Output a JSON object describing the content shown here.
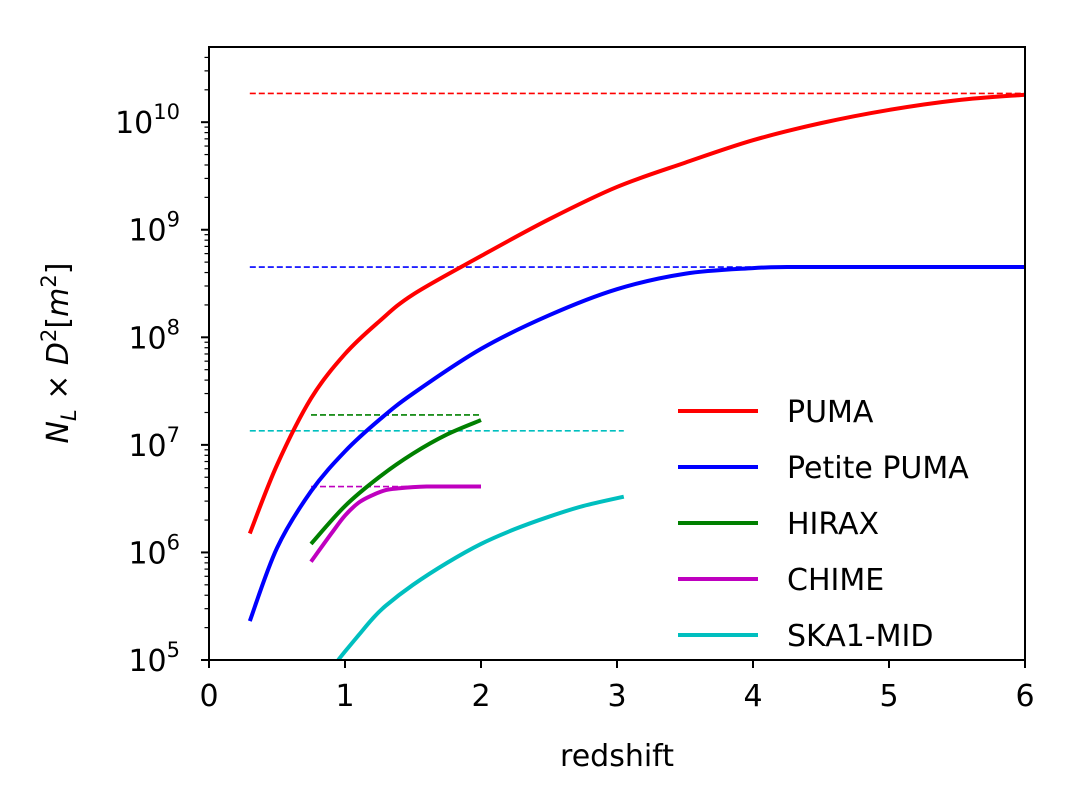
{
  "chart_data": {
    "type": "line",
    "xlabel": "redshift",
    "ylabel": "N_L × D^2 [m^2]",
    "xlim": [
      0,
      6
    ],
    "ylim": [
      100000,
      50000000000
    ],
    "yscale": "log",
    "grid": false,
    "legend_position": "bottom-right",
    "x_ticks": [
      {
        "value": 0,
        "label": "0"
      },
      {
        "value": 1,
        "label": "1"
      },
      {
        "value": 2,
        "label": "2"
      },
      {
        "value": 3,
        "label": "3"
      },
      {
        "value": 4,
        "label": "4"
      },
      {
        "value": 5,
        "label": "5"
      },
      {
        "value": 6,
        "label": "6"
      }
    ],
    "y_ticks": [
      {
        "value": 100000,
        "base": "10",
        "exp": "5"
      },
      {
        "value": 1000000,
        "base": "10",
        "exp": "6"
      },
      {
        "value": 10000000,
        "base": "10",
        "exp": "7"
      },
      {
        "value": 100000000,
        "base": "10",
        "exp": "8"
      },
      {
        "value": 1000000000,
        "base": "10",
        "exp": "9"
      },
      {
        "value": 10000000000,
        "base": "10",
        "exp": "10"
      }
    ],
    "series": [
      {
        "name": "PUMA",
        "color": "#ff0000",
        "x": [
          0.3,
          0.5,
          0.75,
          1.0,
          1.25,
          1.5,
          2.0,
          2.5,
          3.0,
          3.5,
          4.0,
          4.5,
          5.0,
          5.5,
          6.0
        ],
        "y": [
          1500000,
          6500000,
          27000000,
          70000000,
          140000000,
          250000000,
          570000000,
          1250000000,
          2500000000,
          4200000000,
          6800000000,
          9800000000,
          13000000000,
          16000000000,
          18000000000
        ],
        "limit": {
          "x": [
            0.3,
            6.0
          ],
          "y": 18500000000
        }
      },
      {
        "name": "Petite PUMA",
        "color": "#0000ff",
        "x": [
          0.3,
          0.5,
          0.75,
          1.0,
          1.25,
          1.5,
          2.0,
          2.5,
          3.0,
          3.5,
          4.0,
          4.25,
          4.5,
          5.0,
          5.5,
          6.0
        ],
        "y": [
          230000,
          1100000,
          3700000,
          8700000,
          17000000,
          30000000,
          78000000,
          160000000,
          280000000,
          390000000,
          440000000,
          450000000,
          450000000,
          450000000,
          450000000,
          450000000
        ],
        "limit": {
          "x": [
            0.3,
            6.0
          ],
          "y": 450000000
        }
      },
      {
        "name": "HIRAX",
        "color": "#008000",
        "x": [
          0.75,
          1.0,
          1.25,
          1.5,
          1.75,
          2.0
        ],
        "y": [
          1200000,
          2700000,
          5000000,
          8300000,
          12500000,
          17000000
        ],
        "limit": {
          "x": [
            0.75,
            2.0
          ],
          "y": 19000000
        }
      },
      {
        "name": "CHIME",
        "color": "#bf00bf",
        "x": [
          0.75,
          0.9,
          1.0,
          1.1,
          1.2,
          1.3,
          1.4,
          1.5,
          1.6,
          1.75,
          2.0
        ],
        "y": [
          820000,
          1500000,
          2200000,
          2900000,
          3400000,
          3800000,
          3950000,
          4050000,
          4100000,
          4100000,
          4100000
        ],
        "limit": {
          "x": [
            0.75,
            2.0
          ],
          "y": 4100000
        }
      },
      {
        "name": "SKA1-MID",
        "color": "#00bfbf",
        "x": [
          0.95,
          1.0,
          1.1,
          1.2,
          1.3,
          1.5,
          1.75,
          2.0,
          2.25,
          2.5,
          2.75,
          3.05
        ],
        "y": [
          100000,
          120000,
          170000,
          240000,
          320000,
          500000,
          800000,
          1200000,
          1650000,
          2150000,
          2700000,
          3300000
        ],
        "limit": {
          "x": [
            0.3,
            3.05
          ],
          "y": 13500000
        }
      }
    ]
  }
}
